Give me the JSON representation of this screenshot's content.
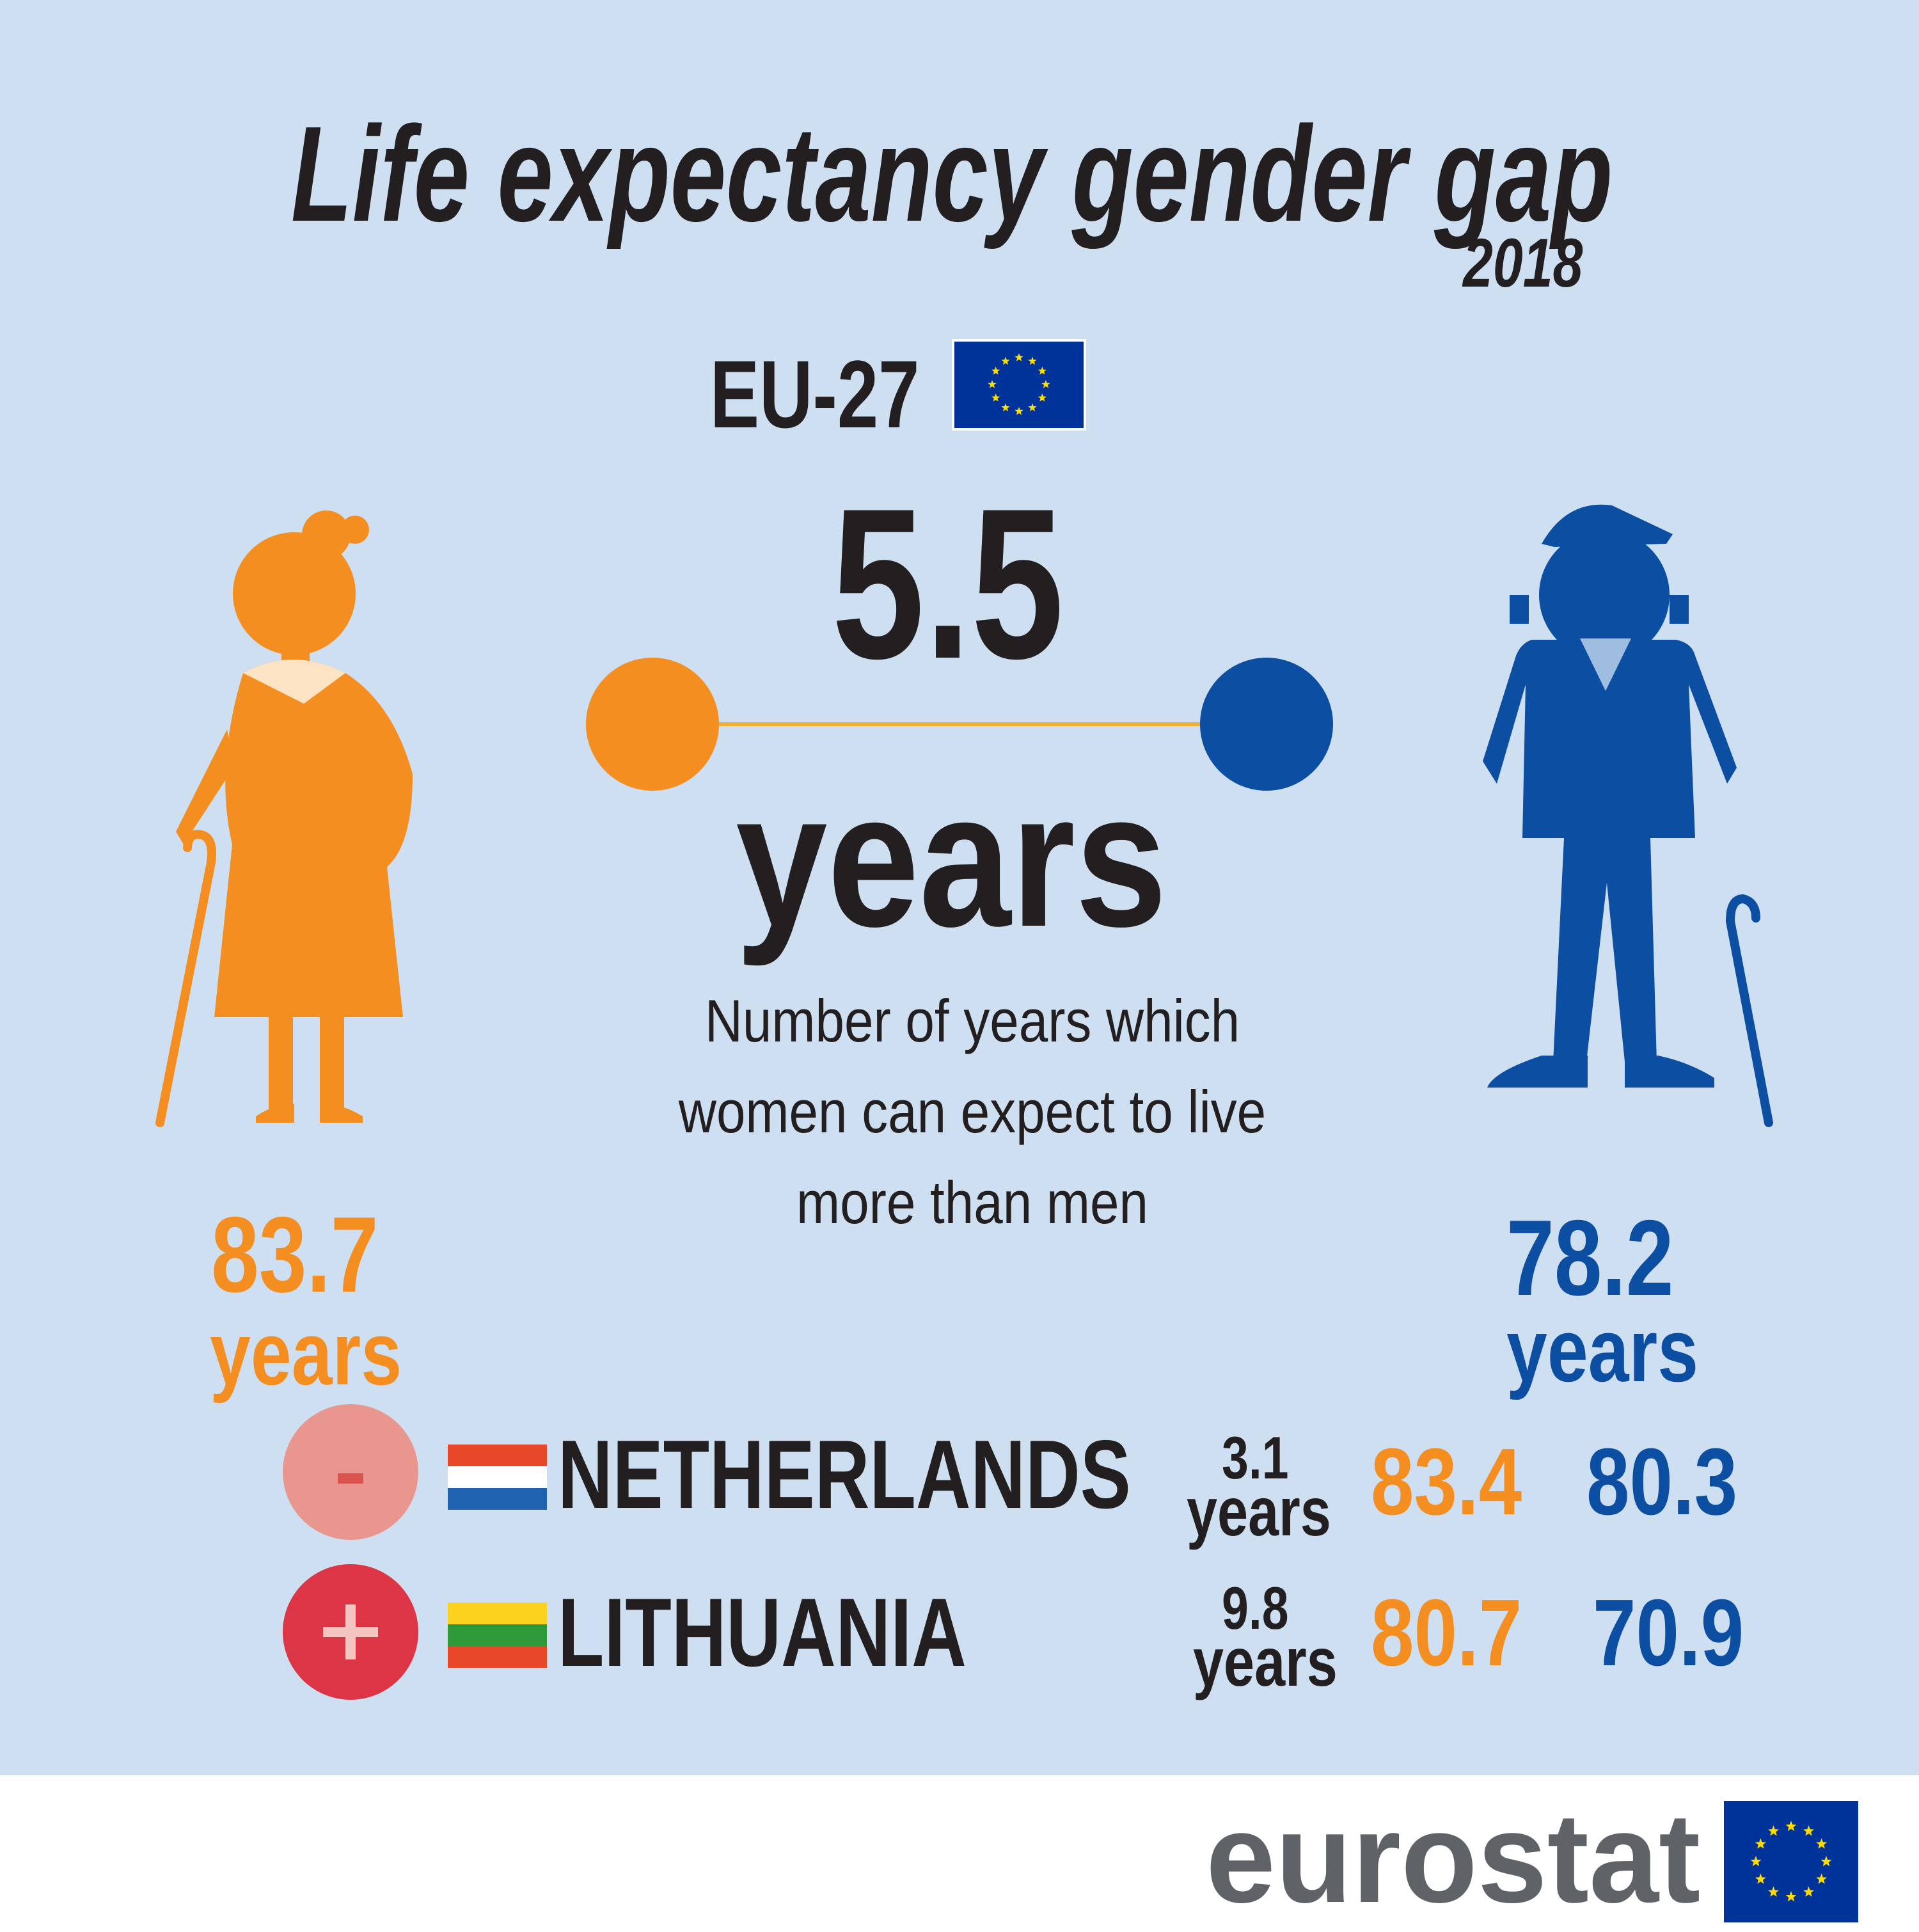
{
  "title": "Life expectancy gender gap",
  "year": "2018",
  "region": "EU-27",
  "gap": {
    "value": "5.5",
    "unit": "years"
  },
  "description": [
    "Number of years which",
    "women can expect to live",
    "more than men"
  ],
  "women": {
    "value": "83.7",
    "unit": "years"
  },
  "men": {
    "value": "78.2",
    "unit": "years"
  },
  "countries": [
    {
      "sign": "-",
      "name": "NETHERLANDS",
      "gap_value": "3.1",
      "gap_unit": "years",
      "women": "83.4",
      "men": "80.3"
    },
    {
      "sign": "+",
      "name": "LITHUANIA",
      "gap_value": "9.8",
      "gap_unit": "years",
      "women": "80.7",
      "men": "70.9"
    }
  ],
  "logo": "eurostat",
  "colors": {
    "background": "#cddff0",
    "women": "#f48e21",
    "men": "#0b4ea2",
    "text": "#231f20",
    "eu_blue": "#003399",
    "eu_star": "#ffdd00",
    "minus_badge": "#e8968e",
    "plus_badge": "#dc3545"
  },
  "icons": [
    "woman-figure-icon",
    "man-figure-icon",
    "eu-flag-icon",
    "netherlands-flag-icon",
    "lithuania-flag-icon",
    "minus-icon",
    "plus-icon"
  ]
}
